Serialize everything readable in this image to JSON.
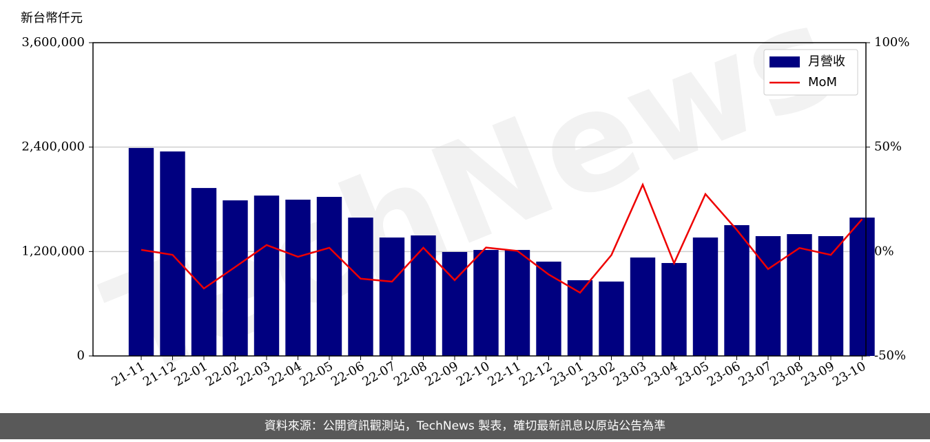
{
  "chart_data": {
    "type": "bar",
    "y_axis_label": "新台幣仟元",
    "watermark": "TechNews",
    "footer": "資料來源：公開資訊觀測站，TechNews 製表，確切最新訊息以原站公告為準",
    "categories": [
      "21-11",
      "21-12",
      "22-01",
      "22-02",
      "22-03",
      "22-04",
      "22-05",
      "22-06",
      "22-07",
      "22-08",
      "22-09",
      "22-10",
      "22-11",
      "22-12",
      "23-01",
      "23-02",
      "23-03",
      "23-04",
      "23-05",
      "23-06",
      "23-07",
      "23-08",
      "23-09",
      "23-10"
    ],
    "series": [
      {
        "name": "月營收",
        "type": "bar",
        "color": "#000080",
        "axis": "y",
        "values": [
          2390000,
          2350000,
          1930000,
          1788000,
          1843000,
          1796000,
          1828000,
          1590000,
          1361000,
          1385000,
          1195000,
          1218000,
          1218000,
          1084000,
          870000,
          855000,
          1131000,
          1068000,
          1361000,
          1503000,
          1377000,
          1400000,
          1377000,
          1590000
        ]
      },
      {
        "name": "MoM",
        "type": "line",
        "color": "#ee0000",
        "axis": "y2",
        "values": [
          0.8,
          -1.6,
          -17.7,
          -7.4,
          3.1,
          -2.5,
          1.8,
          -13,
          -14.4,
          1.8,
          -13.7,
          1.9,
          0.3,
          -11,
          -19.7,
          -1.7,
          32,
          -5.6,
          27.5,
          10.4,
          -8.4,
          1.7,
          -1.6,
          15.5
        ]
      }
    ],
    "ylim": [
      0,
      3600000
    ],
    "yticks": [
      0,
      {
        "value": 1200000,
        "label": "1,200,000"
      },
      {
        "value": 2400000,
        "label": "2,400,000"
      },
      {
        "value": 3600000,
        "label": "3,600,000"
      }
    ],
    "y2lim": [
      -50,
      100
    ],
    "y2ticks": [
      {
        "value": -50,
        "label": "-50%"
      },
      {
        "value": 0,
        "label": "0%"
      },
      {
        "value": 50,
        "label": "50%"
      },
      {
        "value": 100,
        "label": "100%"
      }
    ],
    "grid": true,
    "legend": "upper right"
  }
}
